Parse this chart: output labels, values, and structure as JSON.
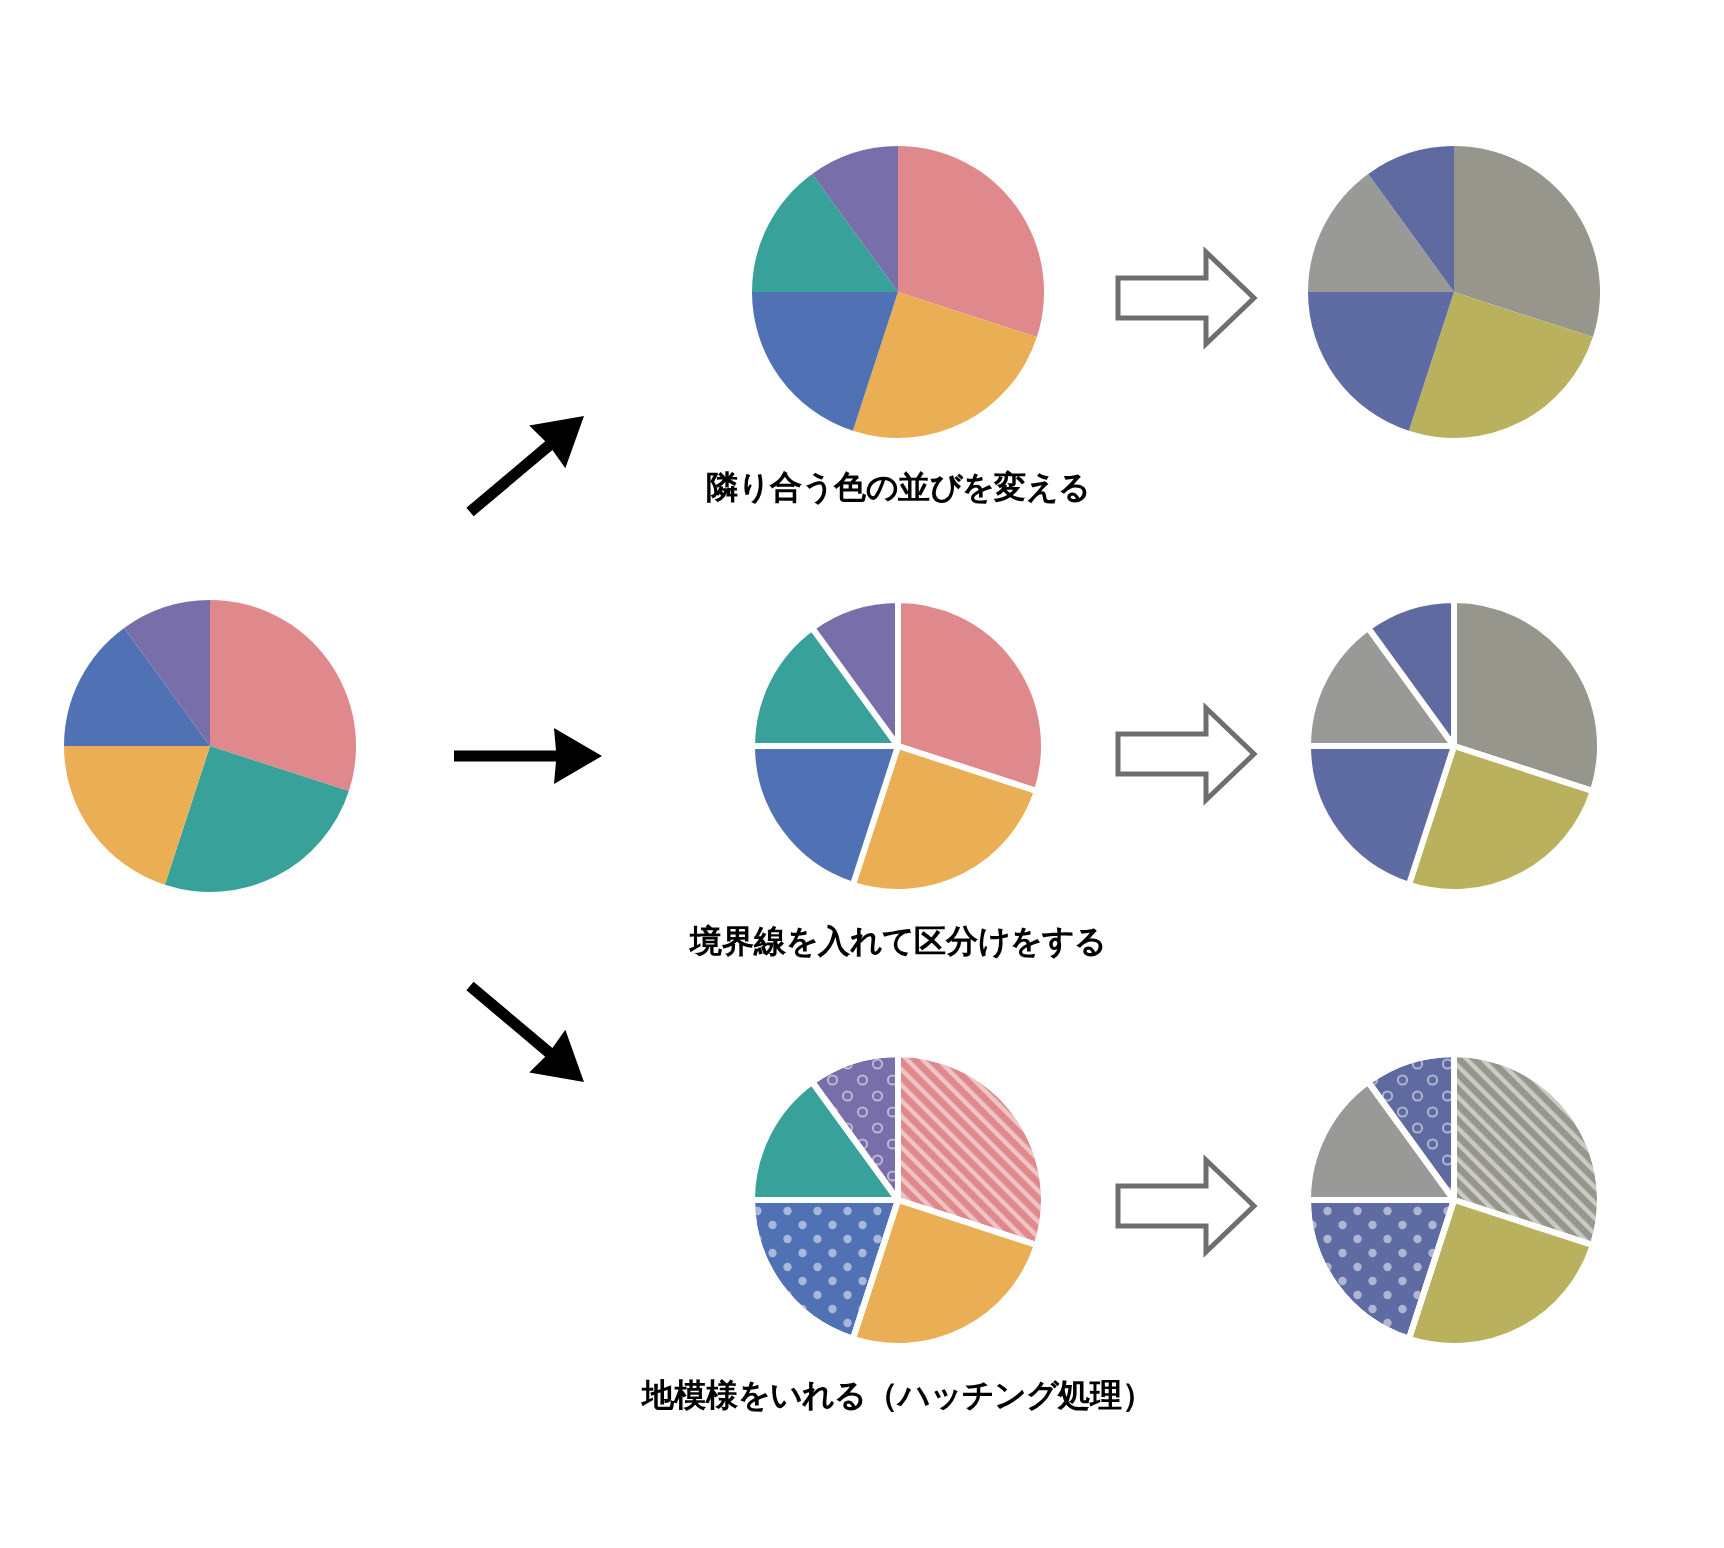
{
  "chart_data": [
    {
      "type": "pie",
      "categories": [
        null,
        null,
        null,
        null,
        null
      ],
      "values": [
        30,
        25,
        20,
        15,
        10
      ],
      "colors": [
        "#df898c",
        "#38a199",
        "#eaae55",
        "#5071b4",
        "#786ea9"
      ]
    },
    {
      "type": "pie",
      "categories": [
        null,
        null,
        null,
        null,
        null
      ],
      "values": [
        30,
        25,
        20,
        15,
        10
      ],
      "colors": [
        "#df898c",
        "#eaae55",
        "#5071b4",
        "#38a199",
        "#786ea9"
      ],
      "annotations": [
        "隣り合う色の並びを変える"
      ]
    },
    {
      "type": "pie",
      "categories": [
        null,
        null,
        null,
        null,
        null
      ],
      "values": [
        30,
        25,
        20,
        15,
        10
      ],
      "colors": [
        "#97968c",
        "#bab15f",
        "#5f6ca4",
        "#999a98",
        "#5f6ba0"
      ]
    },
    {
      "type": "pie",
      "categories": [
        null,
        null,
        null,
        null,
        null
      ],
      "values": [
        30,
        25,
        20,
        15,
        10
      ],
      "colors": [
        "#df898c",
        "#eaae55",
        "#5071b4",
        "#38a199",
        "#786ea9"
      ],
      "annotations": [
        "境界線を入れて区分けをする"
      ]
    },
    {
      "type": "pie",
      "categories": [
        null,
        null,
        null,
        null,
        null
      ],
      "values": [
        30,
        25,
        20,
        15,
        10
      ],
      "colors": [
        "#97968c",
        "#bab15f",
        "#5f6ca4",
        "#999a98",
        "#5f6ba0"
      ]
    },
    {
      "type": "pie",
      "categories": [
        null,
        null,
        null,
        null,
        null
      ],
      "values": [
        30,
        25,
        20,
        15,
        10
      ],
      "colors": [
        "#df898c",
        "#eaae55",
        "#5071b4",
        "#38a199",
        "#786ea9"
      ],
      "annotations": [
        "地模様をいれる（ハッチング処理）"
      ]
    },
    {
      "type": "pie",
      "categories": [
        null,
        null,
        null,
        null,
        null
      ],
      "values": [
        30,
        25,
        20,
        15,
        10
      ],
      "colors": [
        "#97968c",
        "#bab15f",
        "#5f6ca4",
        "#999a98",
        "#5f6ba0"
      ]
    }
  ]
}
